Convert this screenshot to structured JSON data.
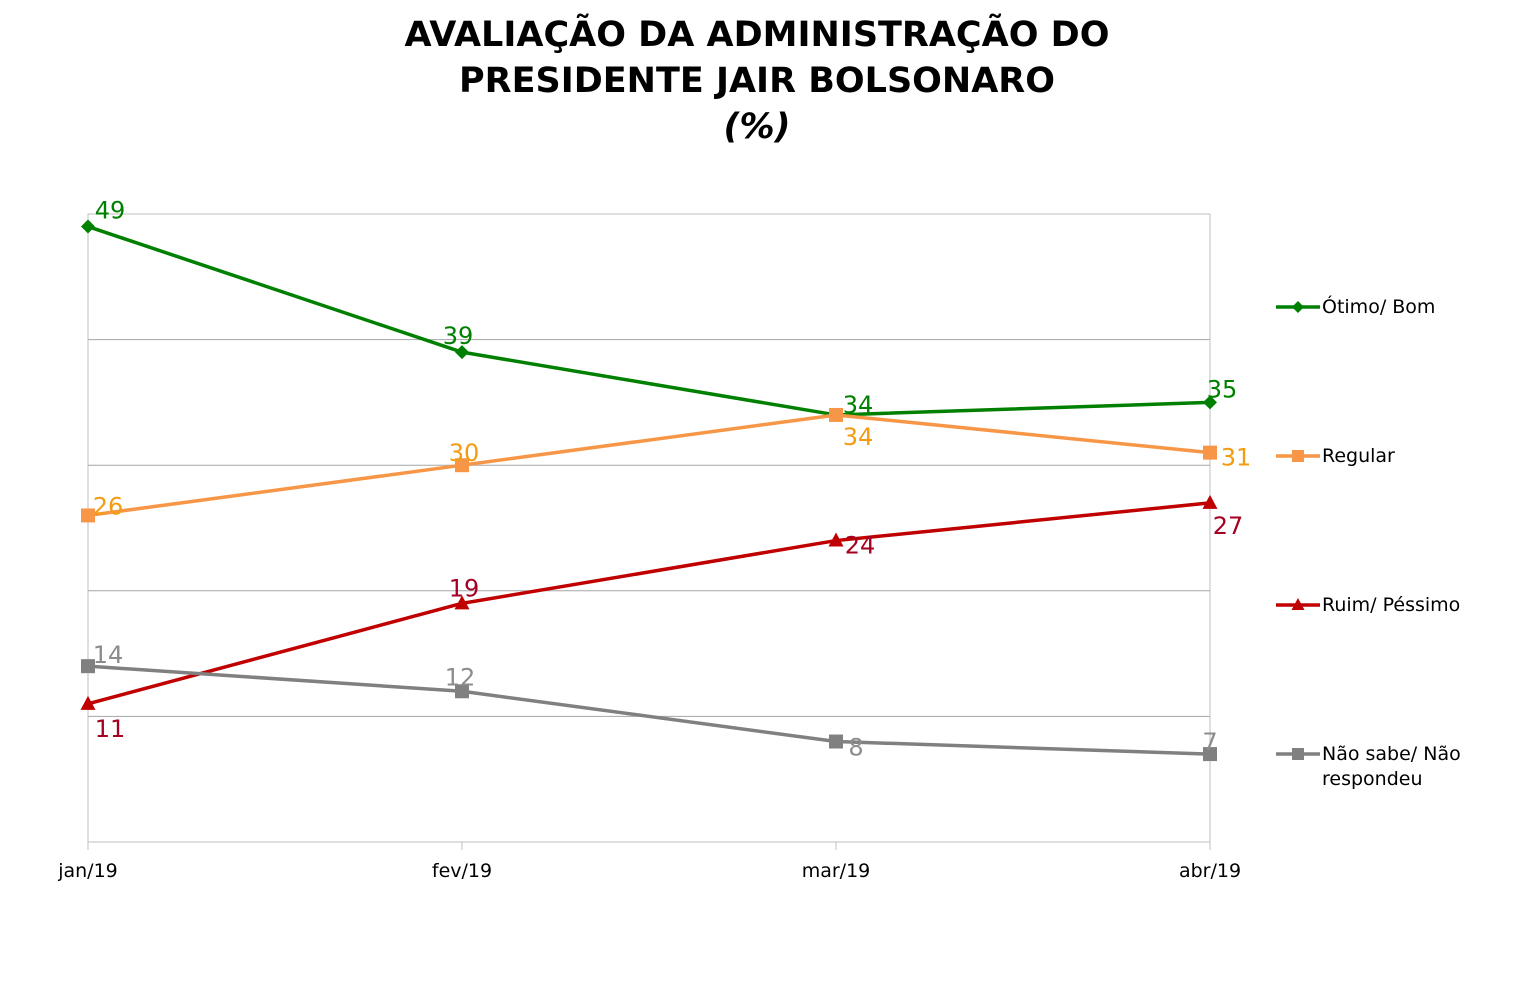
{
  "chart_data": {
    "type": "line",
    "title": "AVALIAÇÃO DA ADMINISTRAÇÃO DO",
    "title_line2": "PRESIDENTE JAIR BOLSONARO",
    "title_unit": "(%)",
    "xlabel": "",
    "ylabel": "",
    "categories": [
      "jan/19",
      "fev/19",
      "mar/19",
      "abr/19"
    ],
    "ylim": [
      0,
      50
    ],
    "grid": true,
    "legend_position": "right",
    "series": [
      {
        "name": "Ótimo/ Bom",
        "color": "#008000",
        "marker": "diamond",
        "values": [
          49,
          39,
          34,
          35
        ]
      },
      {
        "name": "Regular",
        "color": "#F79646",
        "label_color": "#F39C12",
        "marker": "square",
        "values": [
          26,
          30,
          34,
          31
        ]
      },
      {
        "name": "Ruim/ Péssimo",
        "color": "#C00000",
        "label_color": "#A50021",
        "marker": "triangle",
        "values": [
          11,
          19,
          24,
          27
        ]
      },
      {
        "name": "Não sabe/ Não respondeu",
        "name_lines": [
          "Não sabe/ Não",
          "respondeu"
        ],
        "color": "#808080",
        "label_color": "#8C8C8C",
        "marker": "square",
        "values": [
          14,
          12,
          8,
          7
        ]
      }
    ]
  }
}
